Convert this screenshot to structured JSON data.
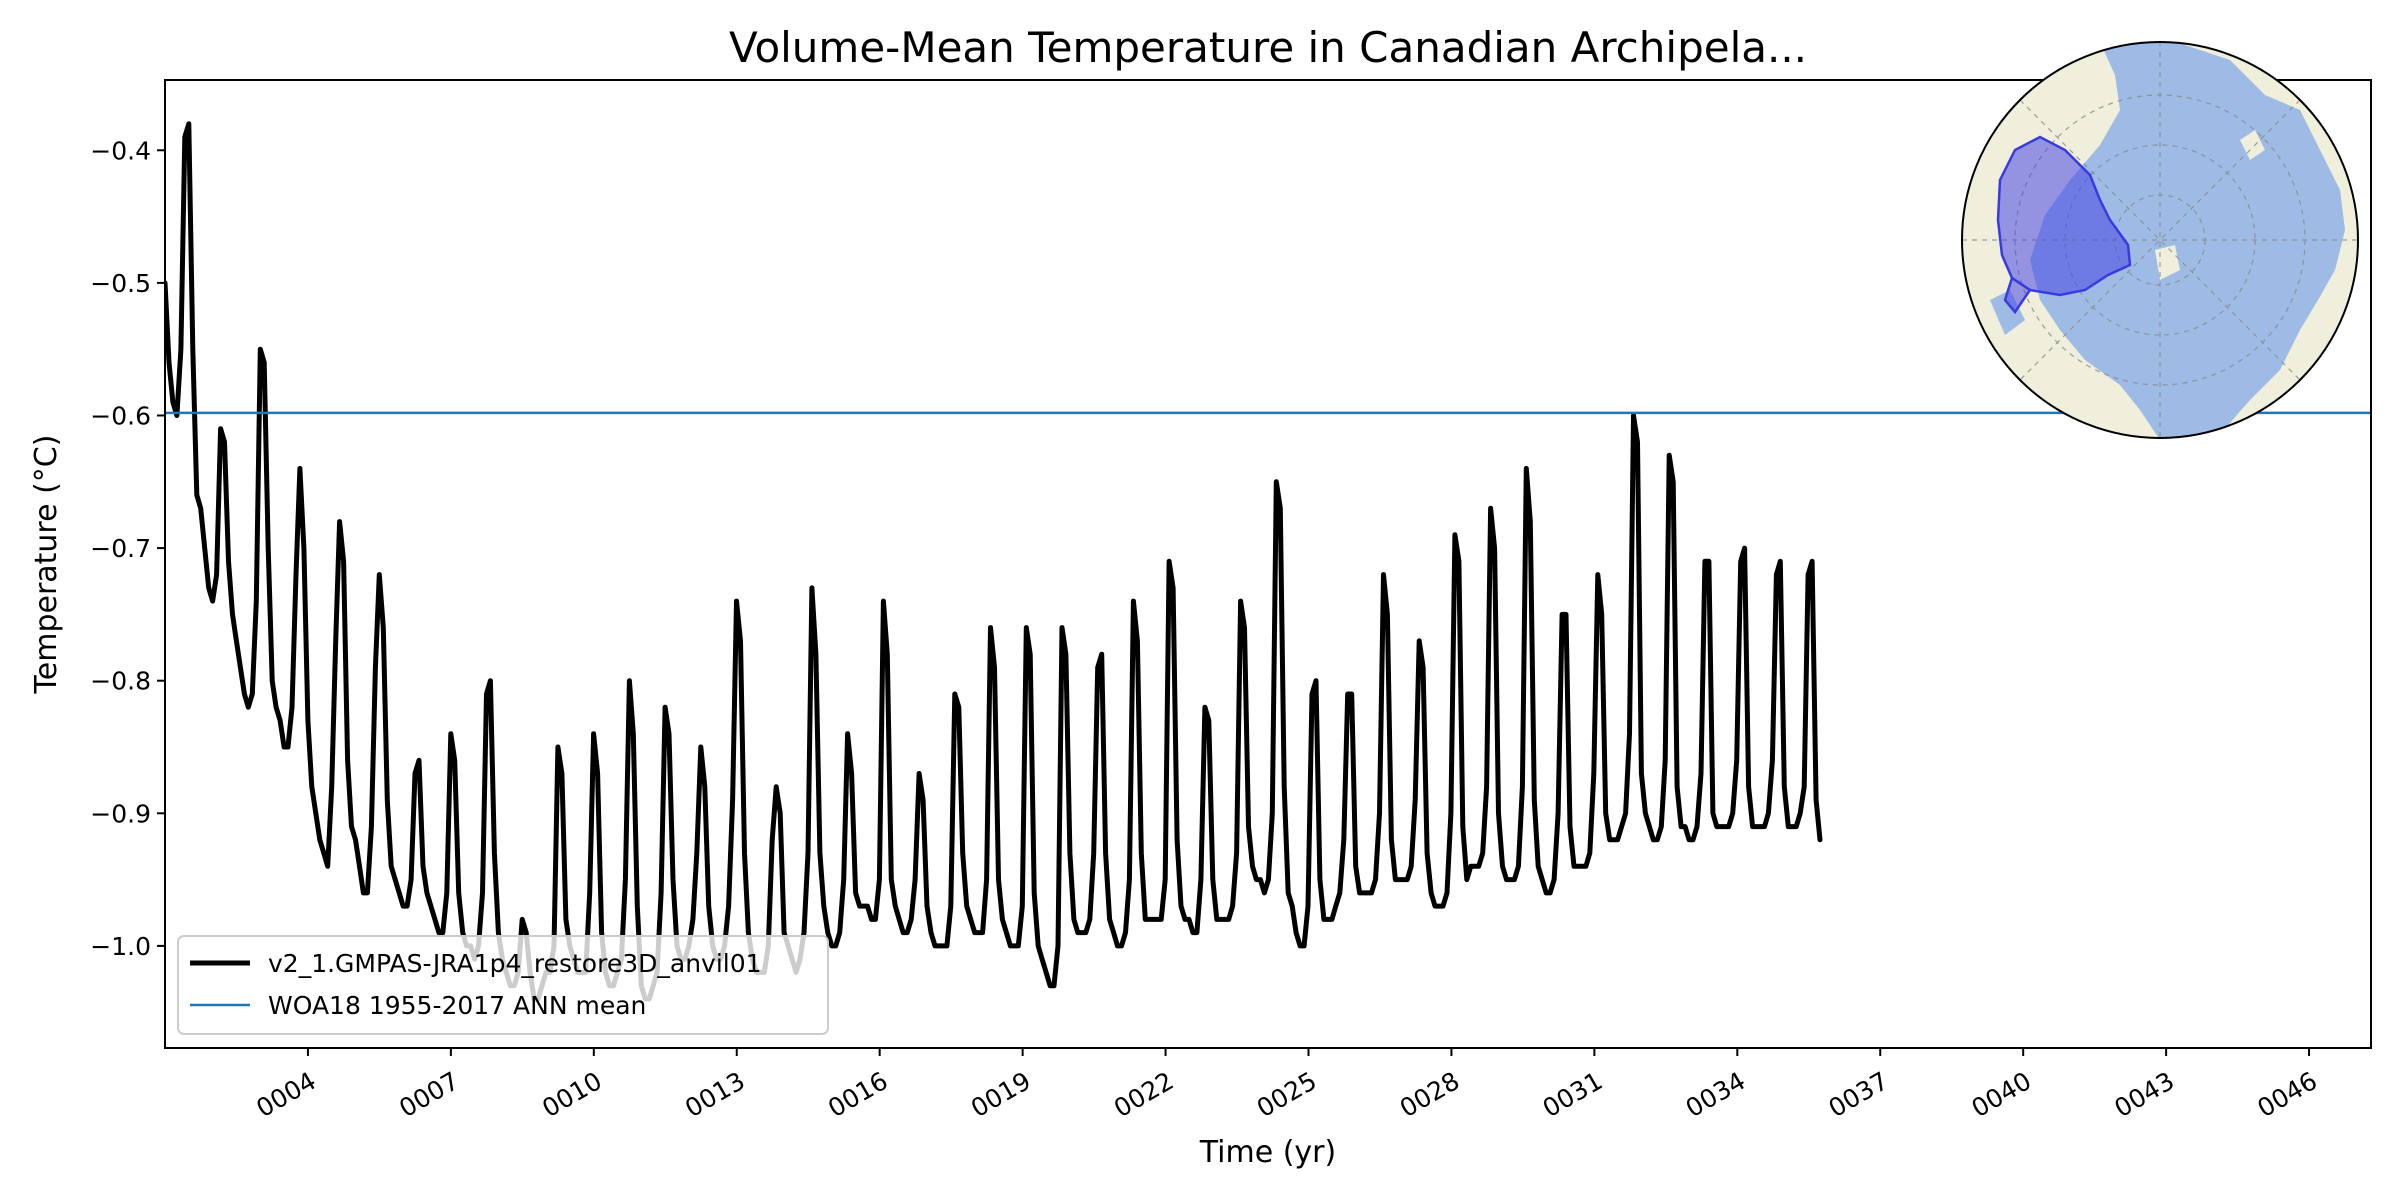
{
  "chart_data": {
    "type": "line",
    "title": "Volume-Mean Temperature in Canadian Archipela...",
    "xlabel": "Time (yr)",
    "ylabel": "Temperature (°C)",
    "xlim": [
      1.0,
      47.3
    ],
    "ylim": [
      -1.077,
      -0.347
    ],
    "grid": false,
    "legend_placement": "lower-left",
    "x_tick_values": [
      4,
      7,
      10,
      13,
      16,
      19,
      22,
      25,
      28,
      31,
      34,
      37,
      40,
      43,
      46
    ],
    "x_tick_labels": [
      "0004",
      "0007",
      "0010",
      "0013",
      "0016",
      "0019",
      "0022",
      "0025",
      "0028",
      "0031",
      "0034",
      "0037",
      "0040",
      "0043",
      "0046"
    ],
    "y_tick_values": [
      -1.0,
      -0.9,
      -0.8,
      -0.7,
      -0.6,
      -0.5,
      -0.4
    ],
    "y_tick_labels": [
      "−1.0",
      "−0.9",
      "−0.8",
      "−0.7",
      "−0.6",
      "−0.5",
      "−0.4"
    ],
    "series": [
      {
        "name": "v2_1.GMPAS-JRA1p4_restore3D_anvil01",
        "color": "#000000",
        "kind": "monthly",
        "x_start": 1.0,
        "x_step": 0.0833,
        "y": [
          -0.5,
          -0.56,
          -0.59,
          -0.6,
          -0.55,
          -0.39,
          -0.38,
          -0.55,
          -0.66,
          -0.67,
          -0.7,
          -0.73,
          -0.74,
          -0.72,
          -0.61,
          -0.62,
          -0.71,
          -0.75,
          -0.77,
          -0.79,
          -0.81,
          -0.82,
          -0.81,
          -0.74,
          -0.55,
          -0.56,
          -0.7,
          -0.8,
          -0.82,
          -0.83,
          -0.85,
          -0.85,
          -0.82,
          -0.72,
          -0.64,
          -0.7,
          -0.83,
          -0.88,
          -0.9,
          -0.92,
          -0.93,
          -0.94,
          -0.88,
          -0.77,
          -0.68,
          -0.71,
          -0.86,
          -0.91,
          -0.92,
          -0.94,
          -0.96,
          -0.96,
          -0.91,
          -0.79,
          -0.72,
          -0.76,
          -0.89,
          -0.94,
          -0.95,
          -0.96,
          -0.97,
          -0.97,
          -0.95,
          -0.87,
          -0.86,
          -0.94,
          -0.96,
          -0.97,
          -0.98,
          -0.99,
          -0.99,
          -0.96,
          -0.84,
          -0.86,
          -0.96,
          -0.99,
          -1.0,
          -1.0,
          -1.01,
          -1.0,
          -0.96,
          -0.81,
          -0.8,
          -0.93,
          -0.99,
          -1.01,
          -1.02,
          -1.03,
          -1.03,
          -1.02,
          -0.98,
          -0.99,
          -1.02,
          -1.04,
          -1.04,
          -1.03,
          -1.02,
          -1.02,
          -1.0,
          -0.85,
          -0.87,
          -0.98,
          -1.0,
          -1.01,
          -1.02,
          -1.02,
          -1.02,
          -0.96,
          -0.84,
          -0.87,
          -0.99,
          -1.02,
          -1.03,
          -1.03,
          -1.02,
          -1.01,
          -0.95,
          -0.8,
          -0.84,
          -0.97,
          -1.03,
          -1.04,
          -1.04,
          -1.03,
          -1.02,
          -0.96,
          -0.82,
          -0.84,
          -0.95,
          -1.0,
          -1.01,
          -1.01,
          -1.0,
          -0.98,
          -0.93,
          -0.85,
          -0.88,
          -0.97,
          -1.0,
          -1.01,
          -1.01,
          -1.0,
          -0.97,
          -0.89,
          -0.74,
          -0.77,
          -0.93,
          -0.99,
          -1.01,
          -1.02,
          -1.02,
          -1.02,
          -1.0,
          -0.92,
          -0.88,
          -0.9,
          -0.99,
          -1.0,
          -1.01,
          -1.02,
          -1.01,
          -0.99,
          -0.93,
          -0.73,
          -0.78,
          -0.93,
          -0.97,
          -0.99,
          -1.0,
          -1.0,
          -0.99,
          -0.95,
          -0.84,
          -0.87,
          -0.96,
          -0.97,
          -0.97,
          -0.97,
          -0.98,
          -0.98,
          -0.95,
          -0.74,
          -0.78,
          -0.95,
          -0.97,
          -0.98,
          -0.99,
          -0.99,
          -0.98,
          -0.95,
          -0.87,
          -0.89,
          -0.97,
          -0.99,
          -1.0,
          -1.0,
          -1.0,
          -1.0,
          -0.97,
          -0.81,
          -0.82,
          -0.93,
          -0.97,
          -0.98,
          -0.99,
          -0.99,
          -0.99,
          -0.95,
          -0.76,
          -0.79,
          -0.95,
          -0.98,
          -0.99,
          -1.0,
          -1.0,
          -1.0,
          -0.97,
          -0.76,
          -0.78,
          -0.96,
          -1.0,
          -1.01,
          -1.02,
          -1.03,
          -1.03,
          -1.0,
          -0.76,
          -0.78,
          -0.93,
          -0.98,
          -0.99,
          -0.99,
          -0.99,
          -0.98,
          -0.93,
          -0.79,
          -0.78,
          -0.93,
          -0.98,
          -0.99,
          -1.0,
          -1.0,
          -0.99,
          -0.95,
          -0.74,
          -0.77,
          -0.93,
          -0.98,
          -0.98,
          -0.98,
          -0.98,
          -0.98,
          -0.95,
          -0.71,
          -0.73,
          -0.92,
          -0.97,
          -0.98,
          -0.98,
          -0.99,
          -0.99,
          -0.95,
          -0.82,
          -0.83,
          -0.95,
          -0.98,
          -0.98,
          -0.98,
          -0.98,
          -0.97,
          -0.93,
          -0.74,
          -0.76,
          -0.91,
          -0.94,
          -0.95,
          -0.95,
          -0.96,
          -0.95,
          -0.9,
          -0.65,
          -0.67,
          -0.88,
          -0.96,
          -0.97,
          -0.99,
          -1.0,
          -1.0,
          -0.97,
          -0.81,
          -0.8,
          -0.95,
          -0.98,
          -0.98,
          -0.98,
          -0.97,
          -0.96,
          -0.92,
          -0.81,
          -0.81,
          -0.94,
          -0.96,
          -0.96,
          -0.96,
          -0.96,
          -0.95,
          -0.9,
          -0.72,
          -0.75,
          -0.92,
          -0.95,
          -0.95,
          -0.95,
          -0.95,
          -0.94,
          -0.89,
          -0.77,
          -0.79,
          -0.93,
          -0.96,
          -0.97,
          -0.97,
          -0.97,
          -0.96,
          -0.9,
          -0.69,
          -0.71,
          -0.91,
          -0.95,
          -0.94,
          -0.94,
          -0.94,
          -0.93,
          -0.88,
          -0.67,
          -0.7,
          -0.9,
          -0.94,
          -0.95,
          -0.95,
          -0.95,
          -0.94,
          -0.88,
          -0.64,
          -0.68,
          -0.89,
          -0.94,
          -0.95,
          -0.96,
          -0.96,
          -0.95,
          -0.9,
          -0.75,
          -0.75,
          -0.91,
          -0.94,
          -0.94,
          -0.94,
          -0.94,
          -0.93,
          -0.87,
          -0.72,
          -0.75,
          -0.9,
          -0.92,
          -0.92,
          -0.92,
          -0.91,
          -0.9,
          -0.84,
          -0.6,
          -0.62,
          -0.87,
          -0.9,
          -0.91,
          -0.92,
          -0.92,
          -0.91,
          -0.86,
          -0.63,
          -0.65,
          -0.88,
          -0.91,
          -0.91,
          -0.92,
          -0.92,
          -0.91,
          -0.87,
          -0.71,
          -0.71,
          -0.9,
          -0.91,
          -0.91,
          -0.91,
          -0.91,
          -0.9,
          -0.86,
          -0.71,
          -0.7,
          -0.88,
          -0.91,
          -0.91,
          -0.91,
          -0.91,
          -0.9,
          -0.86,
          -0.72,
          -0.71,
          -0.88,
          -0.91,
          -0.91,
          -0.91,
          -0.9,
          -0.88,
          -0.72,
          -0.71,
          -0.89,
          -0.92
        ]
      },
      {
        "name": "WOA18 1955-2017 ANN mean",
        "color": "#1f77b4",
        "kind": "constant",
        "y_value": -0.598
      }
    ]
  },
  "inset_map": {
    "icon": "arctic-polar-region-map",
    "land_color": "#efefdb",
    "ocean_color": "#9dbbe5",
    "region_color": "#4747e6"
  }
}
